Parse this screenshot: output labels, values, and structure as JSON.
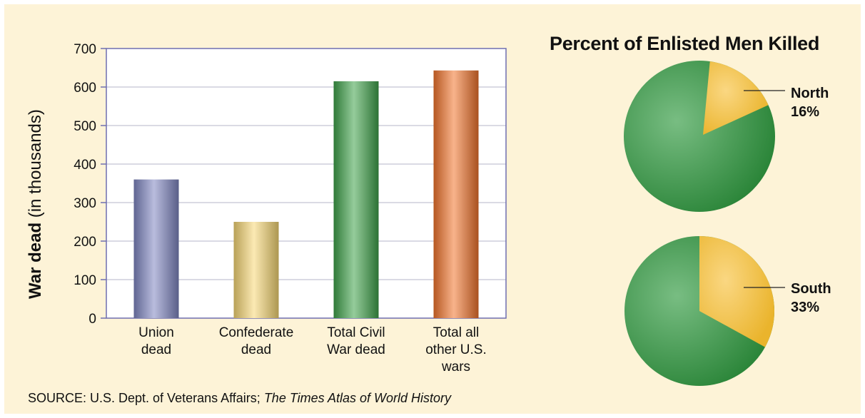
{
  "chart_data": [
    {
      "type": "bar",
      "categories": [
        "Union\ndead",
        "Confederate\ndead",
        "Total Civil\nWar dead",
        "Total all\nother U.S.\nwars"
      ],
      "values": [
        360,
        250,
        615,
        643
      ],
      "bar_colors": [
        "#7f86c2",
        "#f7d774",
        "#3fa34a",
        "#f2742c"
      ],
      "ylabel_bold": "War dead",
      "ylabel_rest": "(in thousands)",
      "yticks": [
        0,
        100,
        200,
        300,
        400,
        500,
        600,
        700
      ],
      "ylim": [
        0,
        700
      ],
      "grid": true
    },
    {
      "type": "pie",
      "title": "Percent of Enlisted Men Killed",
      "pies": [
        {
          "label": "North",
          "percent_text": "16%",
          "percent": 16
        },
        {
          "label": "South",
          "percent_text": "33%",
          "percent": 33
        }
      ],
      "slice_color": "#f6bd2e",
      "rest_color": "#2f9a3f"
    }
  ],
  "source": {
    "prefix": "SOURCE: U.S. Dept. of Veterans Affairs; ",
    "italic": "The Times Atlas of World History"
  },
  "colors": {
    "background": "#fdf3d7",
    "plot_area": "#ffffff",
    "axis": "#6e6eb0",
    "grid": "#b5b5c8"
  }
}
